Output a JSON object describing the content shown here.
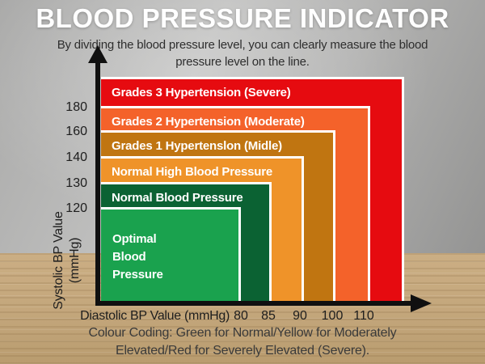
{
  "header": {
    "title": "BLOOD PRESSURE INDICATOR",
    "subtitle_line1": "By dividing the blood pressure level, you can clearly measure the blood",
    "subtitle_line2": "pressure level on the line."
  },
  "chart_data": {
    "type": "nested-area",
    "title": "BLOOD PRESSURE INDICATOR",
    "xlabel": "Diastolic BP Value (mmHg)",
    "ylabel_line1": "Systolic BP Value",
    "ylabel_line2": "(mmHg)",
    "x_ticks": [
      "80",
      "85",
      "90",
      "100",
      "110"
    ],
    "y_ticks": [
      "180",
      "160",
      "140",
      "130",
      "120"
    ],
    "legend_position": "labels-inside-bands",
    "grid": false,
    "bands": [
      {
        "label": "Grades 3 Hypertension (Severe)",
        "color": "#e60b10",
        "systolic_range": "180+",
        "diastolic_range": "110+"
      },
      {
        "label": "Grades 2 Hypertension (Moderate)",
        "color": "#f4622a",
        "systolic_range": "160-180",
        "diastolic_range": "100-110"
      },
      {
        "label": "Grades 1 Hypertenslon (Midle)",
        "color": "#c07511",
        "systolic_range": "140-160",
        "diastolic_range": "90-100"
      },
      {
        "label": "Normal High Blood Pressure",
        "color": "#ef9329",
        "systolic_range": "130-140",
        "diastolic_range": "85-90"
      },
      {
        "label": "Normal Blood Pressure",
        "color": "#0b6233",
        "systolic_range": "120-130",
        "diastolic_range": "80-85"
      },
      {
        "label": "Optimal Blood Pressure",
        "color": "#1aa24e",
        "systolic_range": "under 120",
        "diastolic_range": "under 80"
      }
    ]
  },
  "footer": {
    "note_line1": "Colour Coding: Green for Normal/Yellow for Moderately",
    "note_line2": "Elevated/Red for Severely Elevated (Severe)."
  }
}
